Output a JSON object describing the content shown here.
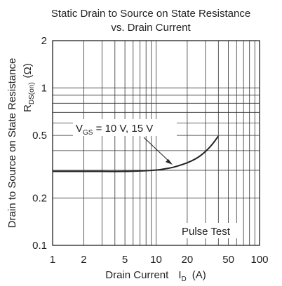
{
  "chart_data": {
    "type": "line",
    "title": "Static Drain to Source on State Resistance",
    "subtitle": "vs. Drain Current",
    "xlabel": {
      "main": "Drain Current",
      "symbol": "I",
      "subscript": "D",
      "unit": "(A)"
    },
    "ylabel": {
      "main": "Drain to Source on State Resistance",
      "symbol": "R",
      "subscript": "DS(on)",
      "unit": "(Ω)"
    },
    "x_scale": "log",
    "y_scale": "log",
    "xlim": [
      1,
      100
    ],
    "ylim": [
      0.1,
      2
    ],
    "x_ticks": [
      1,
      2,
      5,
      10,
      20,
      50,
      100
    ],
    "x_tick_labels": [
      "1",
      "2",
      "5",
      "10",
      "20",
      "50",
      "100"
    ],
    "y_ticks": [
      0.1,
      0.2,
      0.5,
      1,
      2
    ],
    "y_tick_labels": [
      "0.1",
      "0.2",
      "0.5",
      "1",
      "2"
    ],
    "grid": true,
    "series": [
      {
        "x": [
          1,
          2,
          3,
          5,
          7,
          10,
          12,
          15,
          20,
          25,
          30,
          35,
          40
        ],
        "y": [
          0.295,
          0.295,
          0.295,
          0.295,
          0.297,
          0.301,
          0.306,
          0.315,
          0.335,
          0.36,
          0.395,
          0.44,
          0.495
        ]
      }
    ],
    "annotations": [
      {
        "symbol": "V",
        "subscript": "GS",
        "text": " = 10 V, 15 V"
      },
      {
        "text": "Pulse Test"
      }
    ]
  }
}
